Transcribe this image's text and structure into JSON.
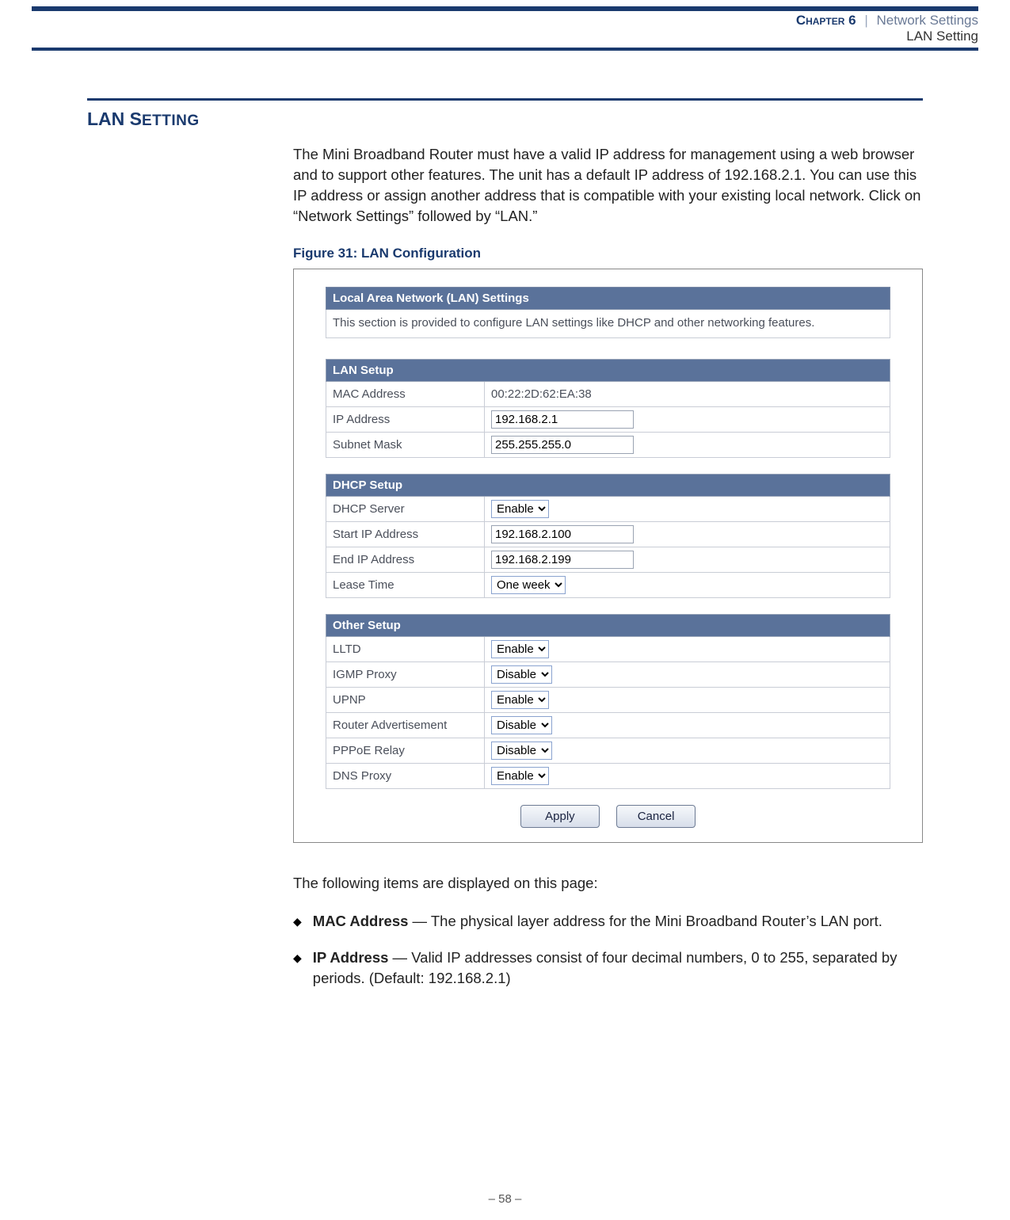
{
  "header": {
    "chapter_label": "Chapter 6",
    "separator": "|",
    "chapter_title": "Network Settings",
    "sub_title": "LAN Setting"
  },
  "section": {
    "title_main": "LAN S",
    "title_rest": "ETTING"
  },
  "intro_para": "The Mini Broadband Router must have a valid IP address for management using a web browser and to support other features. The unit has a default IP address of 192.168.2.1. You can use this IP address or assign another address that is compatible with your existing local network. Click on “Network Settings” followed by “LAN.”",
  "figure": {
    "label": "Figure 31:  LAN Configuration",
    "panel_title": "Local Area Network (LAN) Settings",
    "panel_desc": "This section is provided to configure LAN settings like DHCP and other networking features.",
    "lan_setup": {
      "header": "LAN Setup",
      "rows": {
        "mac_label": "MAC Address",
        "mac_value": "00:22:2D:62:EA:38",
        "ip_label": "IP Address",
        "ip_value": "192.168.2.1",
        "subnet_label": "Subnet Mask",
        "subnet_value": "255.255.255.0"
      }
    },
    "dhcp_setup": {
      "header": "DHCP Setup",
      "rows": {
        "server_label": "DHCP Server",
        "server_value": "Enable",
        "start_label": "Start IP Address",
        "start_value": "192.168.2.100",
        "end_label": "End IP Address",
        "end_value": "192.168.2.199",
        "lease_label": "Lease Time",
        "lease_value": "One week"
      }
    },
    "other_setup": {
      "header": "Other Setup",
      "rows": {
        "lltd_label": "LLTD",
        "lltd_value": "Enable",
        "igmp_label": "IGMP Proxy",
        "igmp_value": "Disable",
        "upnp_label": "UPNP",
        "upnp_value": "Enable",
        "ra_label": "Router Advertisement",
        "ra_value": "Disable",
        "pppoe_label": "PPPoE Relay",
        "pppoe_value": "Disable",
        "dns_label": "DNS Proxy",
        "dns_value": "Enable"
      }
    },
    "buttons": {
      "apply": "Apply",
      "cancel": "Cancel"
    }
  },
  "post_figure_para": "The following items are displayed on this page:",
  "bullets": [
    {
      "term": "MAC Address",
      "desc": " — The physical layer address for the Mini Broadband Router’s LAN port."
    },
    {
      "term": "IP Address",
      "desc": " — Valid IP addresses consist of four decimal numbers, 0 to 255, separated by periods. (Default: 192.168.2.1)"
    }
  ],
  "page_number": "–  58  –"
}
